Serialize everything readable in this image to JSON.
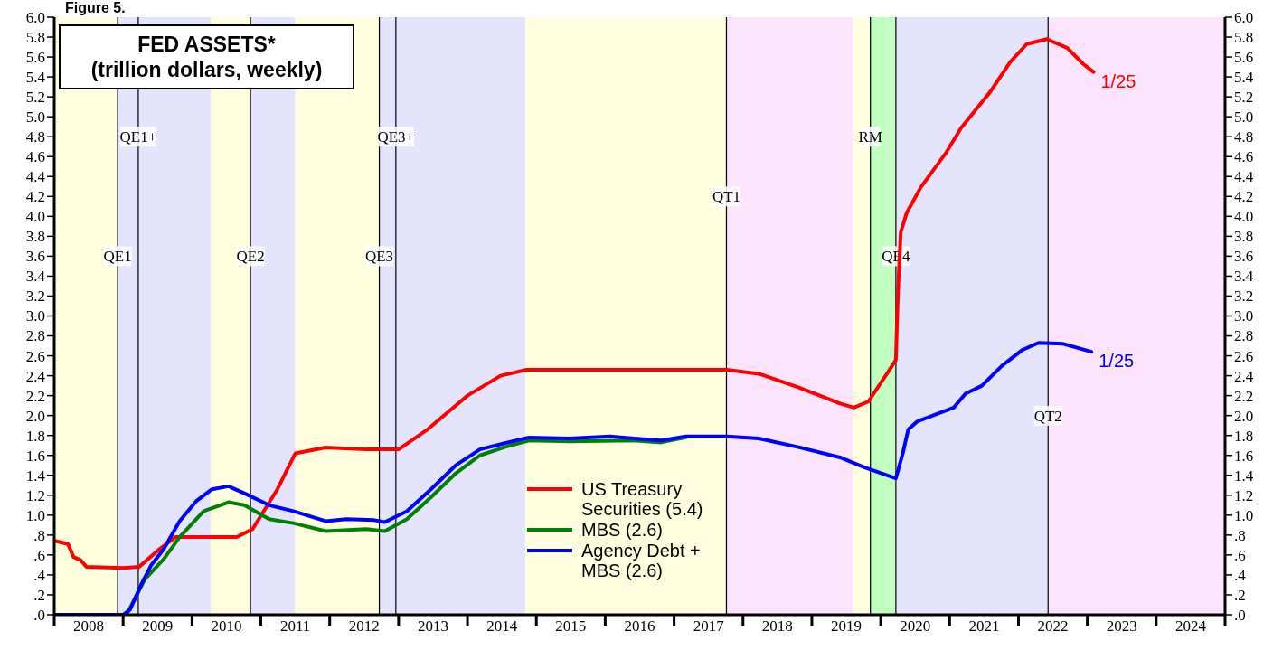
{
  "chart_data": {
    "type": "line",
    "title": "FED ASSETS*",
    "subtitle": "(trillion dollars, weekly)",
    "annotations": [
      "Figure 5.",
      {
        "text": "1/25",
        "x": 2023.09,
        "y": 5.45
      },
      {
        "text": "1/25",
        "x": 2023.06,
        "y": 2.64
      }
    ],
    "series": [
      {
        "name": "US Treasury Securities (5.4)",
        "color": "#ff0000",
        "x": [
          2008.02,
          2008.2,
          2008.28,
          2008.38,
          2008.47,
          2009.0,
          2009.23,
          2009.53,
          2009.76,
          2010.65,
          2010.88,
          2011.24,
          2011.5,
          2011.94,
          2012.53,
          2013.0,
          2013.42,
          2014.0,
          2014.48,
          2014.86,
          2015.5,
          2016.5,
          2017.76,
          2018.23,
          2018.82,
          2019.41,
          2019.61,
          2019.82,
          2020.11,
          2020.22,
          2020.25,
          2020.29,
          2020.38,
          2020.58,
          2020.94,
          2021.17,
          2021.59,
          2021.88,
          2022.12,
          2022.41,
          2022.71,
          2022.94,
          2023.09
        ],
        "values": [
          0.74,
          0.71,
          0.58,
          0.55,
          0.48,
          0.47,
          0.48,
          0.66,
          0.78,
          0.78,
          0.86,
          1.26,
          1.62,
          1.68,
          1.66,
          1.66,
          1.86,
          2.2,
          2.4,
          2.46,
          2.46,
          2.46,
          2.46,
          2.42,
          2.28,
          2.12,
          2.08,
          2.14,
          2.44,
          2.56,
          3.24,
          3.84,
          4.04,
          4.29,
          4.63,
          4.89,
          5.25,
          5.55,
          5.73,
          5.78,
          5.69,
          5.53,
          5.45
        ]
      },
      {
        "name": "MBS (2.6)",
        "color": "#008000",
        "x": [
          2008.0,
          2009.05,
          2009.32,
          2009.59,
          2009.82,
          2010.17,
          2010.53,
          2010.76,
          2011.12,
          2011.47,
          2011.94,
          2012.53,
          2012.8,
          2013.12,
          2013.47,
          2013.83,
          2014.18,
          2014.53,
          2014.89,
          2015.48,
          2016.42,
          2016.81,
          2017.17
        ],
        "values": [
          0.0,
          0.0,
          0.36,
          0.56,
          0.78,
          1.04,
          1.13,
          1.1,
          0.96,
          0.92,
          0.84,
          0.86,
          0.84,
          0.96,
          1.18,
          1.42,
          1.6,
          1.68,
          1.75,
          1.74,
          1.75,
          1.73,
          1.78
        ]
      },
      {
        "name": "Agency Debt + MBS (2.6)",
        "color": "#0000ff",
        "x": [
          2008.0,
          2009.0,
          2009.1,
          2009.26,
          2009.41,
          2009.59,
          2009.82,
          2010.06,
          2010.29,
          2010.53,
          2010.76,
          2011.12,
          2011.47,
          2011.94,
          2012.24,
          2012.65,
          2012.8,
          2013.12,
          2013.47,
          2013.83,
          2014.18,
          2014.53,
          2014.89,
          2015.48,
          2016.07,
          2016.42,
          2016.81,
          2017.17,
          2017.76,
          2018.23,
          2018.82,
          2019.41,
          2019.76,
          2020.22,
          2020.32,
          2020.4,
          2020.53,
          2021.06,
          2021.23,
          2021.47,
          2021.76,
          2022.06,
          2022.29,
          2022.65,
          2023.06
        ],
        "values": [
          0.0,
          0.0,
          0.05,
          0.3,
          0.5,
          0.66,
          0.94,
          1.14,
          1.26,
          1.29,
          1.22,
          1.1,
          1.04,
          0.94,
          0.96,
          0.95,
          0.93,
          1.04,
          1.26,
          1.5,
          1.66,
          1.72,
          1.78,
          1.77,
          1.79,
          1.77,
          1.75,
          1.79,
          1.79,
          1.77,
          1.68,
          1.58,
          1.48,
          1.37,
          1.62,
          1.86,
          1.94,
          2.08,
          2.22,
          2.3,
          2.5,
          2.66,
          2.73,
          2.72,
          2.64
        ]
      }
    ],
    "xlim": [
      2008,
      2025
    ],
    "xticks": [
      {
        "value": 2008,
        "label": null
      },
      {
        "value": 2008.5,
        "label": "2008"
      },
      {
        "value": 2009,
        "label": null
      },
      {
        "value": 2009.5,
        "label": "2009"
      },
      {
        "value": 2010,
        "label": null
      },
      {
        "value": 2010.5,
        "label": "2010"
      },
      {
        "value": 2011,
        "label": null
      },
      {
        "value": 2011.5,
        "label": "2011"
      },
      {
        "value": 2012,
        "label": null
      },
      {
        "value": 2012.5,
        "label": "2012"
      },
      {
        "value": 2013,
        "label": null
      },
      {
        "value": 2013.5,
        "label": "2013"
      },
      {
        "value": 2014,
        "label": null
      },
      {
        "value": 2014.5,
        "label": "2014"
      },
      {
        "value": 2015,
        "label": null
      },
      {
        "value": 2015.5,
        "label": "2015"
      },
      {
        "value": 2016,
        "label": null
      },
      {
        "value": 2016.5,
        "label": "2016"
      },
      {
        "value": 2017,
        "label": null
      },
      {
        "value": 2017.5,
        "label": "2017"
      },
      {
        "value": 2018,
        "label": null
      },
      {
        "value": 2018.5,
        "label": "2018"
      },
      {
        "value": 2019,
        "label": null
      },
      {
        "value": 2019.5,
        "label": "2019"
      },
      {
        "value": 2020,
        "label": null
      },
      {
        "value": 2020.5,
        "label": "2020"
      },
      {
        "value": 2021,
        "label": null
      },
      {
        "value": 2021.5,
        "label": "2021"
      },
      {
        "value": 2022,
        "label": null
      },
      {
        "value": 2022.5,
        "label": "2022"
      },
      {
        "value": 2023,
        "label": null
      },
      {
        "value": 2023.5,
        "label": "2023"
      },
      {
        "value": 2024,
        "label": null
      },
      {
        "value": 2024.5,
        "label": "2024"
      },
      {
        "value": 2025,
        "label": null
      }
    ],
    "ylim": [
      0,
      6
    ],
    "yticks": [
      {
        "value": 0,
        "label": ".0"
      },
      {
        "value": 0.2,
        "label": ".2"
      },
      {
        "value": 0.4,
        "label": ".4"
      },
      {
        "value": 0.6,
        "label": ".6"
      },
      {
        "value": 0.8,
        "label": ".8"
      },
      {
        "value": 1,
        "label": "1.0"
      },
      {
        "value": 1.2,
        "label": "1.2"
      },
      {
        "value": 1.4,
        "label": "1.4"
      },
      {
        "value": 1.6,
        "label": "1.6"
      },
      {
        "value": 1.8,
        "label": "1.8"
      },
      {
        "value": 2,
        "label": "2.0"
      },
      {
        "value": 2.2,
        "label": "2.2"
      },
      {
        "value": 2.4,
        "label": "2.4"
      },
      {
        "value": 2.6,
        "label": "2.6"
      },
      {
        "value": 2.8,
        "label": "2.8"
      },
      {
        "value": 3,
        "label": "3.0"
      },
      {
        "value": 3.2,
        "label": "3.2"
      },
      {
        "value": 3.4,
        "label": "3.4"
      },
      {
        "value": 3.6,
        "label": "3.6"
      },
      {
        "value": 3.8,
        "label": "3.8"
      },
      {
        "value": 4,
        "label": "4.0"
      },
      {
        "value": 4.2,
        "label": "4.2"
      },
      {
        "value": 4.4,
        "label": "4.4"
      },
      {
        "value": 4.6,
        "label": "4.6"
      },
      {
        "value": 4.8,
        "label": "4.8"
      },
      {
        "value": 5,
        "label": "5.0"
      },
      {
        "value": 5.2,
        "label": "5.2"
      },
      {
        "value": 5.4,
        "label": "5.4"
      },
      {
        "value": 5.6,
        "label": "5.6"
      },
      {
        "value": 5.8,
        "label": "5.8"
      },
      {
        "value": 6,
        "label": "6.0"
      }
    ],
    "y2lim": [
      0,
      6
    ],
    "y2ticks": [
      {
        "value": 0,
        "label": ".0"
      },
      {
        "value": 0.2,
        "label": ".2"
      },
      {
        "value": 0.4,
        "label": ".4"
      },
      {
        "value": 0.6,
        "label": ".6"
      },
      {
        "value": 0.8,
        "label": ".8"
      },
      {
        "value": 1,
        "label": "1.0"
      },
      {
        "value": 1.2,
        "label": "1.2"
      },
      {
        "value": 1.4,
        "label": "1.4"
      },
      {
        "value": 1.6,
        "label": "1.6"
      },
      {
        "value": 1.8,
        "label": "1.8"
      },
      {
        "value": 2,
        "label": "2.0"
      },
      {
        "value": 2.2,
        "label": "2.2"
      },
      {
        "value": 2.4,
        "label": "2.4"
      },
      {
        "value": 2.6,
        "label": "2.6"
      },
      {
        "value": 2.8,
        "label": "2.8"
      },
      {
        "value": 3,
        "label": "3.0"
      },
      {
        "value": 3.2,
        "label": "3.2"
      },
      {
        "value": 3.4,
        "label": "3.4"
      },
      {
        "value": 3.6,
        "label": "3.6"
      },
      {
        "value": 3.8,
        "label": "3.8"
      },
      {
        "value": 4,
        "label": "4.0"
      },
      {
        "value": 4.2,
        "label": "4.2"
      },
      {
        "value": 4.4,
        "label": "4.4"
      },
      {
        "value": 4.6,
        "label": "4.6"
      },
      {
        "value": 4.8,
        "label": "4.8"
      },
      {
        "value": 5,
        "label": "5.0"
      },
      {
        "value": 5.2,
        "label": "5.2"
      },
      {
        "value": 5.4,
        "label": "5.4"
      },
      {
        "value": 5.6,
        "label": "5.6"
      },
      {
        "value": 5.8,
        "label": "5.8"
      },
      {
        "value": 6,
        "label": "6.0"
      }
    ],
    "bands": [
      {
        "axis": "x",
        "from": 2008.0,
        "to": 2008.92,
        "color": "#ffffe0"
      },
      {
        "axis": "x",
        "from": 2008.92,
        "to": 2010.27,
        "color": "#e4e4fc"
      },
      {
        "axis": "x",
        "from": 2010.27,
        "to": 2010.85,
        "color": "#ffffe0"
      },
      {
        "axis": "x",
        "from": 2010.85,
        "to": 2011.5,
        "color": "#e4e4fc"
      },
      {
        "axis": "x",
        "from": 2011.5,
        "to": 2012.72,
        "color": "#ffffe0"
      },
      {
        "axis": "x",
        "from": 2012.72,
        "to": 2014.84,
        "color": "#e4e4fc"
      },
      {
        "axis": "x",
        "from": 2014.84,
        "to": 2017.76,
        "color": "#ffffe0"
      },
      {
        "axis": "x",
        "from": 2017.76,
        "to": 2019.6,
        "color": "#fce4fc"
      },
      {
        "axis": "x",
        "from": 2019.6,
        "to": 2019.85,
        "color": "#ffffe0"
      },
      {
        "axis": "x",
        "from": 2019.85,
        "to": 2020.22,
        "color": "#c0ffc0"
      },
      {
        "axis": "x",
        "from": 2020.22,
        "to": 2022.43,
        "color": "#e4e4fc"
      },
      {
        "axis": "x",
        "from": 2022.43,
        "to": 2025.0,
        "color": "#fce4fc"
      }
    ],
    "ref_lines": [
      {
        "axis": "x",
        "value": 2008.92,
        "label": "QE1"
      },
      {
        "axis": "x",
        "value": 2009.22,
        "label": "QE1+"
      },
      {
        "axis": "x",
        "value": 2010.85,
        "label": "QE2"
      },
      {
        "axis": "x",
        "value": 2012.72,
        "label": "QE3"
      },
      {
        "axis": "x",
        "value": 2012.96,
        "label": "QE3+"
      },
      {
        "axis": "x",
        "value": 2017.76,
        "label": "QT1"
      },
      {
        "axis": "x",
        "value": 2019.85,
        "label": "RM"
      },
      {
        "axis": "x",
        "value": 2020.22,
        "label": "QE4"
      },
      {
        "axis": "x",
        "value": 2022.43,
        "label": "QT2"
      }
    ],
    "legend": "bottom",
    "grid": false,
    "marker": "none",
    "line_style": "solid"
  }
}
